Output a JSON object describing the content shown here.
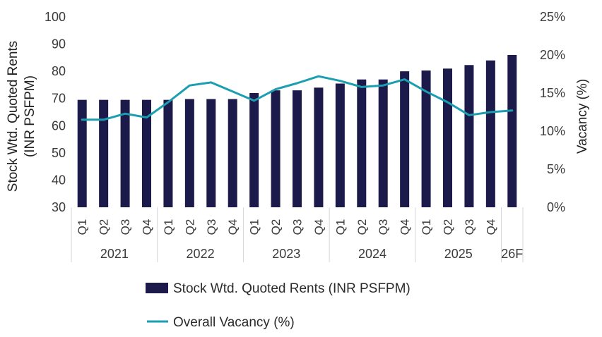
{
  "colors": {
    "bar": "#1b1a4a",
    "line": "#1a9eb0",
    "text": "#3a3a3a",
    "divider": "#d6d6d6"
  },
  "chart_data": {
    "type": "bar",
    "categories": [
      "Q1",
      "Q2",
      "Q3",
      "Q4",
      "Q1",
      "Q2",
      "Q3",
      "Q4",
      "Q1",
      "Q2",
      "Q3",
      "Q4",
      "Q1",
      "Q2",
      "Q3",
      "Q4",
      "Q1",
      "Q2",
      "Q3",
      "Q4",
      ""
    ],
    "groups": [
      {
        "label": "2021",
        "span": 4
      },
      {
        "label": "2022",
        "span": 4
      },
      {
        "label": "2023",
        "span": 4
      },
      {
        "label": "2024",
        "span": 4
      },
      {
        "label": "2025",
        "span": 4
      },
      {
        "label": "26F",
        "span": 1
      }
    ],
    "series": [
      {
        "name": "Stock Wtd. Quoted Rents (INR PSFPM)",
        "type": "bar",
        "axis": "left",
        "values": [
          69.5,
          69.5,
          69.5,
          69.5,
          69.5,
          69.8,
          69.8,
          69.8,
          72.0,
          73.0,
          73.0,
          74.0,
          75.5,
          77.0,
          77.0,
          80.0,
          80.3,
          81.0,
          82.3,
          84.0,
          86.0
        ]
      },
      {
        "name": "Overall Vacancy (%)",
        "type": "line",
        "axis": "right",
        "values": [
          11.5,
          11.5,
          12.3,
          11.8,
          13.8,
          16.0,
          16.4,
          15.2,
          14.0,
          15.5,
          16.3,
          17.2,
          16.6,
          15.8,
          16.0,
          16.8,
          15.2,
          13.8,
          12.1,
          12.5,
          12.7
        ]
      }
    ],
    "ylabel": "Stock Wtd. Quoted Rents (INR PSFPM)",
    "ylabel_lines": [
      "Stock Wtd. Quoted Rents",
      "(INR PSFPM)"
    ],
    "ylim": [
      30,
      100
    ],
    "yticks": [
      "30",
      "40",
      "50",
      "60",
      "70",
      "80",
      "90",
      "100"
    ],
    "y2label": "Vacancy (%)",
    "y2lim": [
      0,
      25
    ],
    "y2ticks": [
      "0%",
      "5%",
      "10%",
      "15%",
      "20%",
      "25%"
    ],
    "legend": [
      "Stock Wtd. Quoted Rents (INR PSFPM)",
      "Overall Vacancy (%)"
    ],
    "legend_position": "bottom"
  }
}
